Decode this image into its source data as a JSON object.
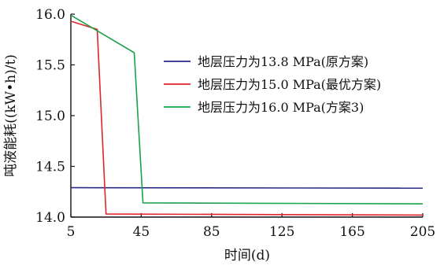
{
  "chart_data": {
    "type": "line",
    "xlabel": "时间(d)",
    "ylabel": "吨液能耗((kW•h)/t)",
    "xlim": [
      5,
      205
    ],
    "ylim": [
      14.0,
      16.0
    ],
    "x_ticks": [
      5,
      45,
      85,
      125,
      165,
      205
    ],
    "y_ticks": [
      14.0,
      14.5,
      15.0,
      15.5,
      16.0
    ],
    "x_tick_labels": [
      "5",
      "45",
      "85",
      "125",
      "165",
      "205"
    ],
    "y_tick_labels": [
      "14.0",
      "14.5",
      "15.0",
      "15.5",
      "16.0"
    ],
    "grid": false,
    "legend_position": "center-right",
    "series": [
      {
        "name": "地层压力为13.8 MPa(原方案)",
        "color": "#2b2a86",
        "points": [
          [
            5,
            14.29
          ],
          [
            205,
            14.285
          ]
        ]
      },
      {
        "name": "地层压力为15.0 MPa(最优方案)",
        "color": "#e0262b",
        "points": [
          [
            5,
            15.93
          ],
          [
            20,
            15.85
          ],
          [
            25,
            14.03
          ],
          [
            205,
            14.02
          ]
        ]
      },
      {
        "name": "地层压力为16.0 MPa(方案3)",
        "color": "#1aa34a",
        "points": [
          [
            5,
            15.99
          ],
          [
            41,
            15.62
          ],
          [
            46,
            14.14
          ],
          [
            205,
            14.13
          ]
        ]
      }
    ]
  }
}
